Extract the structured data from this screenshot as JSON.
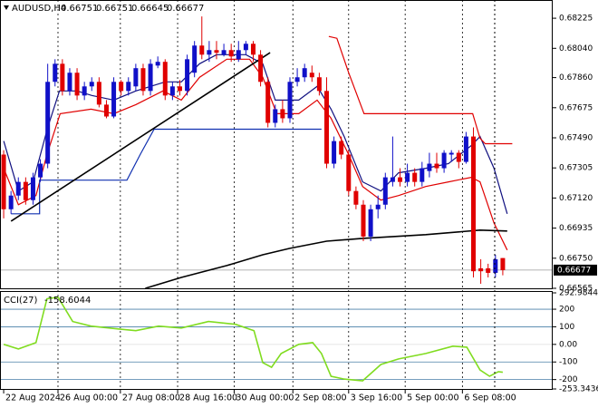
{
  "chart_data": {
    "type": "candlestick",
    "symbol": "AUDUSD,H4",
    "up_color": "#1010c8",
    "down_color": "#e00000",
    "open": [
      0.67387,
      0.67051,
      0.67135,
      0.67219,
      0.67107,
      0.67247,
      0.67331,
      0.67834,
      0.67945,
      0.67778,
      0.6789,
      0.6775,
      0.67806,
      0.67834,
      0.67694,
      0.67621,
      0.67834,
      0.67778,
      0.67806,
      0.67918,
      0.67778,
      0.67934,
      0.67957,
      0.6775,
      0.67806,
      0.67778,
      0.6789,
      0.68057,
      0.68001,
      0.68029,
      0.68001,
      0.68029,
      0.67973,
      0.68029,
      0.68068,
      0.68001,
      0.67834,
      0.67582,
      0.67666,
      0.6761,
      0.67834,
      0.67862,
      0.6789,
      0.67862,
      0.67778,
      0.67331,
      0.6747,
      0.67387,
      0.67163,
      0.67079,
      0.66883,
      0.67051,
      0.67079,
      0.67219,
      0.67247,
      0.67219,
      0.67275,
      0.67219,
      0.67286,
      0.67331,
      0.67303,
      0.67387,
      0.67398,
      0.67342,
      0.67498,
      0.66688,
      0.66688,
      0.6666,
      0.66751
    ],
    "high": [
      0.67414,
      0.67163,
      0.67247,
      0.67247,
      0.67275,
      0.67359,
      0.67945,
      0.67973,
      0.67973,
      0.67918,
      0.67918,
      0.67834,
      0.67862,
      0.67862,
      0.67722,
      0.67862,
      0.67845,
      0.67862,
      0.67945,
      0.67945,
      0.67973,
      0.6799,
      0.67973,
      0.67834,
      0.67845,
      0.68001,
      0.68085,
      0.68236,
      0.68085,
      0.68085,
      0.68068,
      0.68068,
      0.68085,
      0.68085,
      0.68085,
      0.68029,
      0.67862,
      0.67694,
      0.67722,
      0.67862,
      0.67918,
      0.67945,
      0.67934,
      0.6789,
      0.67862,
      0.67498,
      0.67498,
      0.67414,
      0.67191,
      0.67107,
      0.67079,
      0.67135,
      0.67275,
      0.67498,
      0.67303,
      0.67331,
      0.67303,
      0.67342,
      0.67398,
      0.67398,
      0.67414,
      0.67414,
      0.67414,
      0.67526,
      0.67554,
      0.66744,
      0.66716,
      0.66771,
      0.66751
    ],
    "low": [
      0.66995,
      0.67023,
      0.67107,
      0.67079,
      0.67079,
      0.67219,
      0.67303,
      0.67806,
      0.6775,
      0.6775,
      0.67722,
      0.67722,
      0.67778,
      0.67677,
      0.6761,
      0.6761,
      0.6775,
      0.6775,
      0.67778,
      0.6775,
      0.6775,
      0.67918,
      0.67722,
      0.67722,
      0.6775,
      0.6775,
      0.67862,
      0.67973,
      0.67957,
      0.67973,
      0.6799,
      0.67957,
      0.67957,
      0.68001,
      0.67957,
      0.67806,
      0.67554,
      0.67554,
      0.67582,
      0.67582,
      0.67806,
      0.67834,
      0.67834,
      0.6775,
      0.67303,
      0.67303,
      0.67359,
      0.67135,
      0.67051,
      0.66855,
      0.66855,
      0.66995,
      0.67051,
      0.67191,
      0.67191,
      0.67191,
      0.67191,
      0.67191,
      0.67247,
      0.67275,
      0.67275,
      0.67342,
      0.67303,
      0.67331,
      0.66632,
      0.66593,
      0.66632,
      0.66632,
      0.66645
    ],
    "close": [
      0.67051,
      0.67135,
      0.67219,
      0.67107,
      0.67247,
      0.67331,
      0.67834,
      0.67945,
      0.67778,
      0.6789,
      0.6775,
      0.67806,
      0.67834,
      0.67694,
      0.67621,
      0.67834,
      0.67778,
      0.67834,
      0.67918,
      0.67778,
      0.67945,
      0.67957,
      0.6775,
      0.67806,
      0.67778,
      0.67973,
      0.68057,
      0.68001,
      0.68029,
      0.68013,
      0.68029,
      0.6799,
      0.68029,
      0.68068,
      0.68001,
      0.67834,
      0.67582,
      0.67666,
      0.6761,
      0.67834,
      0.67862,
      0.67918,
      0.67862,
      0.67778,
      0.67331,
      0.6747,
      0.67387,
      0.67163,
      0.67079,
      0.66883,
      0.67051,
      0.67079,
      0.67247,
      0.67247,
      0.67219,
      0.67275,
      0.67219,
      0.67303,
      0.67331,
      0.67303,
      0.67398,
      0.67398,
      0.67342,
      0.67498,
      0.6667,
      0.6667,
      0.6666,
      0.66744,
      0.66677
    ],
    "xlim": [
      -0.5,
      74.8
    ],
    "xticks": [
      {
        "value": 0,
        "label": "22 Aug 2024"
      },
      {
        "value": 7.4,
        "label": "26 Aug 00:00"
      },
      {
        "value": 15.9,
        "label": "27 Aug 08:00"
      },
      {
        "value": 23.7,
        "label": "28 Aug 16:00"
      },
      {
        "value": 31.4,
        "label": "30 Aug 00:00"
      },
      {
        "value": 39.4,
        "label": "2 Sep 08:00"
      },
      {
        "value": 47,
        "label": "3 Sep 16:00"
      },
      {
        "value": 54.7,
        "label": "5 Sep 00:00"
      },
      {
        "value": 62.5,
        "label": "6 Sep 08:00"
      }
    ],
    "ylim": [
      0.66565,
      0.68337
    ],
    "yticks": [
      0.68225,
      {
        "value": 0.6804,
        "label": "0.68040"
      },
      {
        "value": 0.6786,
        "label": "0.67860"
      },
      0.67675,
      {
        "value": 0.6749,
        "label": "0.67490"
      },
      0.67305,
      {
        "value": 0.6712,
        "label": "0.67120"
      },
      0.66935,
      {
        "value": 0.6675,
        "label": "0.66750"
      },
      0.66565
    ],
    "overlays": [
      {
        "color": "#101080",
        "x": [
          0,
          2,
          4,
          6,
          7.6,
          10,
          12,
          15,
          18,
          22,
          24.2,
          26.7,
          29,
          33,
          35.3,
          37,
          40.2,
          42.7,
          44.6,
          46.4,
          48.9,
          51.4,
          53.8,
          57.5,
          60.6,
          63.7,
          64.9,
          66.8,
          68.6
        ],
        "values": [
          0.6747,
          0.67163,
          0.67219,
          0.67554,
          0.67778,
          0.67778,
          0.6775,
          0.67722,
          0.67778,
          0.67834,
          0.67834,
          0.67945,
          0.68001,
          0.68001,
          0.67945,
          0.67722,
          0.67722,
          0.67806,
          0.67666,
          0.67498,
          0.67219,
          0.67163,
          0.67275,
          0.67303,
          0.67331,
          0.67442,
          0.67498,
          0.67303,
          0.67023
        ]
      },
      {
        "color": "#e00000",
        "x": [
          0,
          2,
          4.4,
          5.9,
          7.7,
          11.9,
          15,
          18,
          21.7,
          24.2,
          26.7,
          30.4,
          33.5,
          35.3,
          37.2,
          40.2,
          42.7,
          44.6,
          47,
          48.9,
          51.4,
          53.8,
          57.5,
          60.6,
          63.7,
          64.9,
          66.8,
          68.6
        ],
        "values": [
          0.67303,
          0.67079,
          0.67135,
          0.67387,
          0.67638,
          0.67666,
          0.67638,
          0.67694,
          0.67778,
          0.67722,
          0.67862,
          0.67973,
          0.67973,
          0.67862,
          0.67638,
          0.67638,
          0.67722,
          0.6761,
          0.67387,
          0.67191,
          0.67107,
          0.67135,
          0.67191,
          0.67219,
          0.67247,
          0.67219,
          0.66967,
          0.668
        ]
      },
      {
        "color": "#000000",
        "x": [
          19.3,
          24.2,
          30.4,
          35.3,
          39,
          44,
          48.9,
          57.5,
          64.9,
          68.6
        ],
        "values": [
          0.66565,
          0.66632,
          0.66705,
          0.66771,
          0.66811,
          0.66855,
          0.66872,
          0.66895,
          0.66923,
          0.66917
        ]
      },
      {
        "color": "#1030b0",
        "x": [
          1,
          4.9,
          4.9,
          16.8,
          18.6,
          20.5,
          43.3
        ],
        "values": [
          0.67023,
          0.67023,
          0.6723,
          0.6723,
          0.67387,
          0.67543,
          0.67543
        ]
      },
      {
        "color": "#e00000",
        "x": [
          44.3,
          45.4,
          47,
          49.1,
          63.9,
          64.9,
          65.6,
          69.3
        ],
        "values": [
          0.68113,
          0.68102,
          0.6789,
          0.67638,
          0.67638,
          0.67487,
          0.67454,
          0.67454
        ]
      },
      {
        "color": "#000000",
        "x": [
          1,
          36.3
        ],
        "values": [
          0.66978,
          0.68013
        ]
      }
    ],
    "indicator": {
      "title": "CCI(27)",
      "color": "#80dc20",
      "x": [
        0,
        2,
        4.4,
        5.9,
        7.4,
        9.4,
        11.9,
        15.6,
        18,
        21.1,
        24.2,
        27.9,
        31.6,
        34.1,
        35.3,
        36.5,
        37.8,
        40.2,
        42.1,
        43.3,
        44.6,
        46.4,
        48.9,
        51.4,
        53.8,
        57.5,
        61.2,
        63.1,
        64.9,
        66.2,
        67.4,
        68
      ],
      "values": [
        0,
        -26,
        10,
        259,
        269,
        130,
        104,
        88,
        78,
        104,
        93,
        130,
        114,
        78,
        -104,
        -130,
        -52,
        0,
        10,
        -52,
        -181,
        -197,
        -207,
        -114,
        -83,
        -52,
        -10,
        -16,
        -145,
        -181,
        -155,
        -158.6044
      ],
      "ylim": [
        -253.3436,
        292.9844
      ],
      "yticks": [
        292.9844,
        200,
        100,
        {
          "value": 0,
          "label": "0.00"
        },
        -100,
        -200,
        -253.3436
      ]
    }
  }
}
